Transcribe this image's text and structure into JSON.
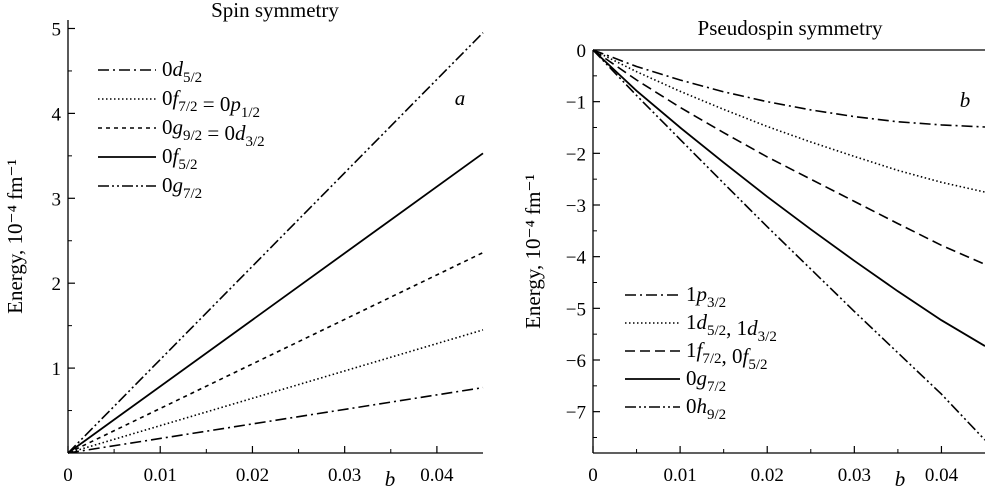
{
  "chart_data": [
    {
      "type": "line",
      "title": "Spin symmetry",
      "xlabel": "b",
      "ylabel": "Energy, 10⁻⁴ fm⁻¹",
      "panel_label": "a",
      "xlim": [
        0,
        0.045
      ],
      "ylim": [
        0,
        5.1
      ],
      "xticks": [
        0,
        0.01,
        0.02,
        0.03,
        0.04
      ],
      "xtick_labels": [
        "0",
        "0.01",
        "0.02",
        "0.03",
        "0.04"
      ],
      "yticks": [
        1,
        2,
        3,
        4,
        5
      ],
      "ytick_labels": [
        "1",
        "2",
        "3",
        "4",
        "5"
      ],
      "grid": false,
      "legend_position": "top-left",
      "x": [
        0,
        0.045
      ],
      "series": [
        {
          "name": "0d5/2",
          "legend": {
            "base": "0",
            "orb": "d",
            "sub": "5/2"
          },
          "dash": "dashdot",
          "values": [
            0,
            0.77
          ]
        },
        {
          "name": "0f7/2 = 0p1/2",
          "legend": {
            "base": "0",
            "orb": "f",
            "sub": "7/2",
            "base2": " = 0",
            "orb2": "p",
            "sub2": "1/2"
          },
          "dash": "dotted",
          "values": [
            0,
            1.45
          ]
        },
        {
          "name": "0g9/2 = 0d3/2",
          "legend": {
            "base": "0",
            "orb": "g",
            "sub": "9/2",
            "base2": " = 0",
            "orb2": "d",
            "sub2": "3/2"
          },
          "dash": "dashed-short",
          "values": [
            0,
            2.36
          ]
        },
        {
          "name": "0f5/2",
          "legend": {
            "base": "0",
            "orb": "f",
            "sub": "5/2"
          },
          "dash": "solid",
          "values": [
            0,
            3.53
          ]
        },
        {
          "name": "0g7/2",
          "legend": {
            "base": "0",
            "orb": "g",
            "sub": "7/2"
          },
          "dash": "dashdotdot",
          "values": [
            0,
            4.95
          ]
        }
      ]
    },
    {
      "type": "line",
      "title": "Pseudospin symmetry",
      "xlabel": "b",
      "ylabel": "Energy, 10⁻⁴ fm⁻¹",
      "panel_label": "b",
      "xlim": [
        0,
        0.045
      ],
      "ylim": [
        -7.8,
        0
      ],
      "xticks": [
        0,
        0.01,
        0.02,
        0.03,
        0.04
      ],
      "xtick_labels": [
        "0",
        "0.01",
        "0.02",
        "0.03",
        "0.04"
      ],
      "yticks": [
        0,
        -1,
        -2,
        -3,
        -4,
        -5,
        -6,
        -7
      ],
      "ytick_labels": [
        "0",
        "−1",
        "−2",
        "−3",
        "−4",
        "−5",
        "−6",
        "−7"
      ],
      "grid": false,
      "legend_position": "bottom-left",
      "x": [
        0,
        0.005,
        0.01,
        0.015,
        0.02,
        0.025,
        0.03,
        0.035,
        0.04,
        0.045
      ],
      "series": [
        {
          "name": "1p3/2",
          "legend": {
            "base": "1",
            "orb": "p",
            "sub": "3/2"
          },
          "dash": "dashdot",
          "values": [
            0,
            -0.32,
            -0.58,
            -0.81,
            -1.0,
            -1.16,
            -1.29,
            -1.39,
            -1.45,
            -1.49
          ]
        },
        {
          "name": "1d5/2, 1d3/2",
          "legend": {
            "base": "1",
            "orb": "d",
            "sub": "5/2",
            "base2": ", 1",
            "orb2": "d",
            "sub2": "3/2"
          },
          "dash": "dotted",
          "values": [
            0,
            -0.42,
            -0.8,
            -1.15,
            -1.48,
            -1.78,
            -2.06,
            -2.33,
            -2.56,
            -2.75
          ]
        },
        {
          "name": "1f7/2, 0f5/2",
          "legend": {
            "base": "1",
            "orb": "f",
            "sub": "7/2",
            "base2": ", 0",
            "orb2": "f",
            "sub2": "5/2"
          },
          "dash": "dashed",
          "values": [
            0,
            -0.58,
            -1.11,
            -1.6,
            -2.07,
            -2.5,
            -2.93,
            -3.36,
            -3.78,
            -4.15
          ]
        },
        {
          "name": "0g7/2",
          "legend": {
            "base": "0",
            "orb": "g",
            "sub": "7/2"
          },
          "dash": "solid",
          "values": [
            0,
            -0.79,
            -1.5,
            -2.18,
            -2.84,
            -3.47,
            -4.08,
            -4.67,
            -5.23,
            -5.73
          ]
        },
        {
          "name": "0h9/2",
          "legend": {
            "base": "0",
            "orb": "h",
            "sub": "9/2"
          },
          "dash": "dashdotdot",
          "values": [
            0,
            -0.88,
            -1.73,
            -2.58,
            -3.42,
            -4.24,
            -5.06,
            -5.86,
            -6.66,
            -7.55
          ]
        }
      ]
    }
  ]
}
